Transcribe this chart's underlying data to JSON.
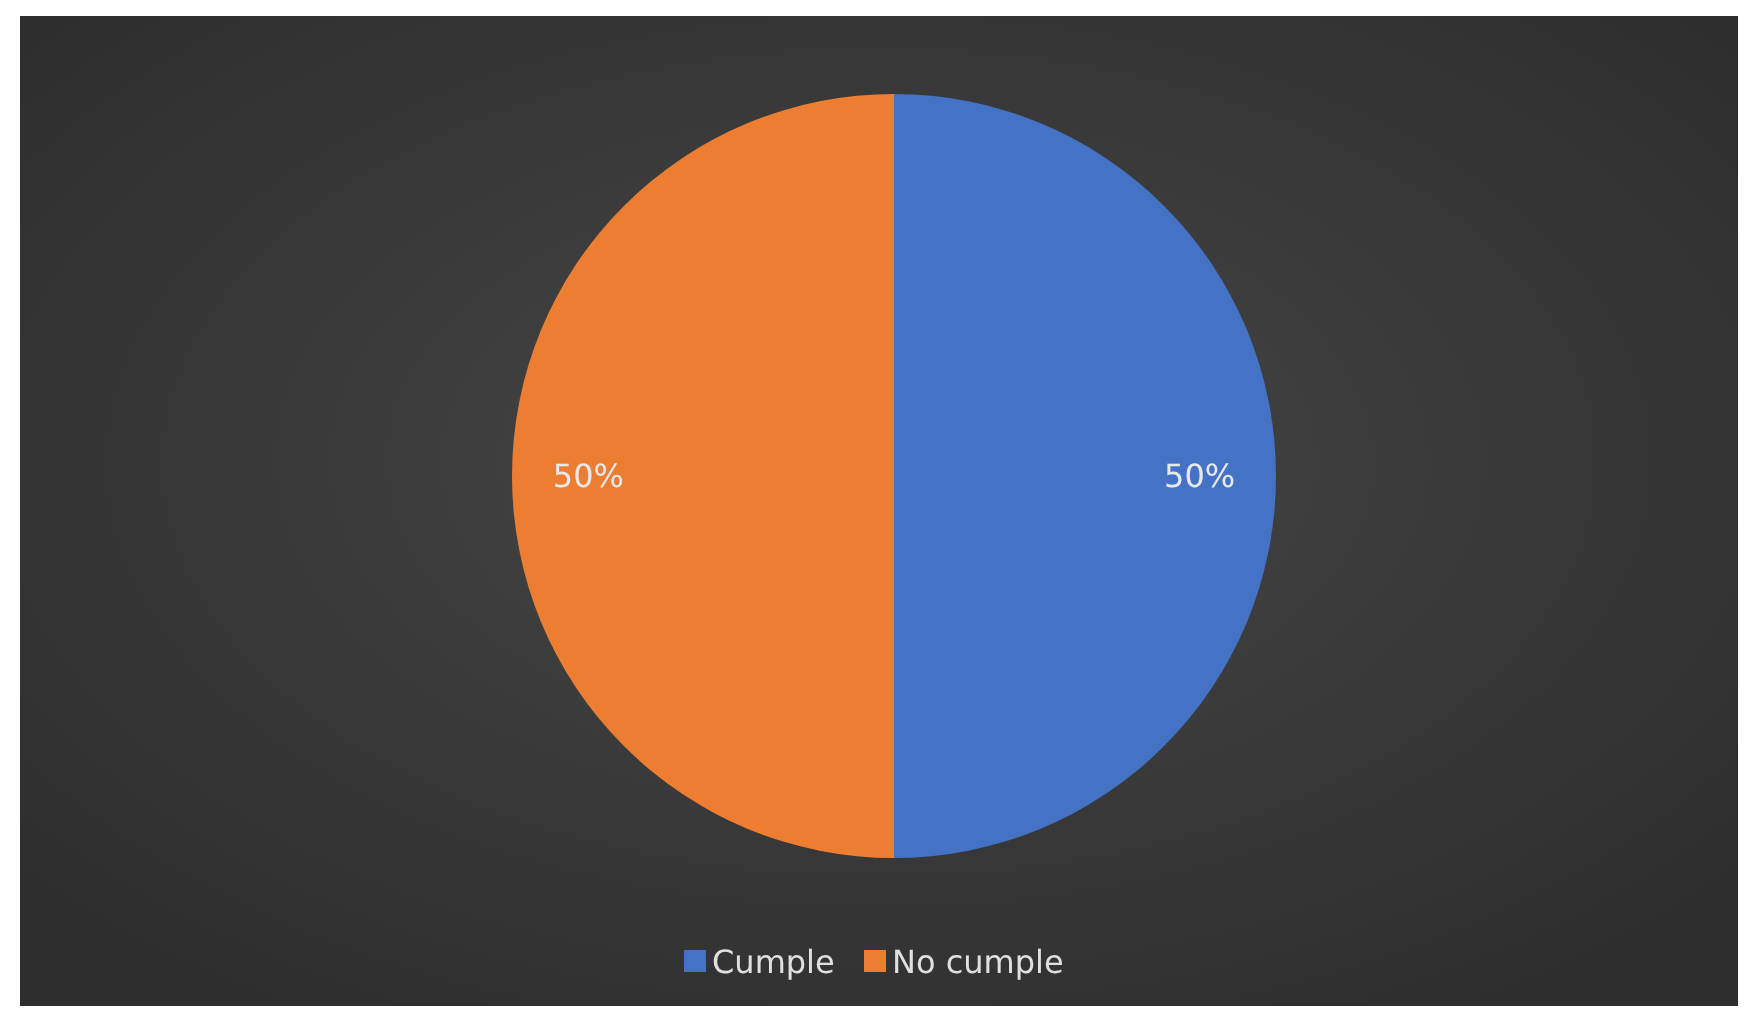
{
  "chart_data": {
    "type": "pie",
    "categories": [
      "Cumple",
      "No cumple"
    ],
    "values": [
      50,
      50
    ],
    "colors": [
      "#4472c4",
      "#ed7d31"
    ],
    "value_labels": [
      "50%",
      "50%"
    ],
    "legend": "bottom"
  }
}
